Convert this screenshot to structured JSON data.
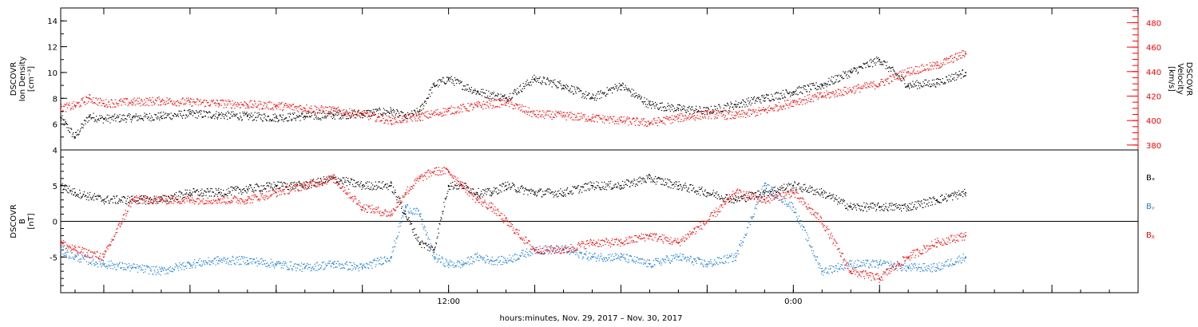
{
  "footer_label": "hours:minutes, Nov. 29, 2017 – Nov. 30, 2017",
  "colors": {
    "black": "#000000",
    "red": "#ff0000",
    "blue": "#1e7ed8"
  },
  "chart_data": [
    {
      "type": "scatter",
      "panel": "density-velocity",
      "ylabel_left": [
        "DSCOVR",
        "Ion Density",
        "[cm⁻³]"
      ],
      "ylabel_right": [
        "DSCOVR",
        "Velocity",
        "[km/s]"
      ],
      "ylim_left": [
        4,
        15
      ],
      "ylim_right": [
        376,
        492
      ],
      "yticks_left": [
        4,
        6,
        8,
        10,
        12,
        14
      ],
      "yticks_right": [
        380,
        400,
        420,
        440,
        460,
        480
      ],
      "xlim_hours": [
        -1.5,
        36
      ],
      "xtick_labels": [
        {
          "h": 12,
          "label": "12:00"
        },
        {
          "h": 24,
          "label": "0:00"
        }
      ],
      "series": [
        {
          "name": "",
          "color": "black",
          "axis": "left",
          "x": [
            -1.5,
            -1,
            -0.5,
            0,
            1,
            2,
            3,
            4,
            5,
            6,
            7,
            8,
            9,
            10,
            10.5,
            11,
            11.5,
            12,
            13,
            14,
            15,
            16,
            17,
            18,
            19,
            20,
            21,
            22,
            23,
            24,
            25,
            26,
            27,
            28,
            29,
            30
          ],
          "y": [
            6.5,
            5.0,
            6.6,
            6.4,
            6.5,
            6.6,
            6.8,
            6.7,
            6.6,
            6.5,
            6.6,
            6.7,
            6.8,
            7.0,
            6.5,
            7.0,
            9.0,
            9.5,
            8.5,
            8.0,
            9.5,
            9.0,
            8.0,
            9.0,
            7.5,
            7.2,
            7.0,
            7.5,
            8.0,
            8.5,
            9.0,
            10.0,
            11.0,
            9.0,
            9.2,
            10.0
          ],
          "y2": []
        },
        {
          "name": "",
          "color": "red",
          "axis": "right",
          "x": [
            -1.5,
            -1,
            -0.5,
            0,
            1,
            2,
            3,
            4,
            5,
            6,
            7,
            8,
            9,
            10,
            11,
            12,
            13,
            14,
            15,
            16,
            17,
            18,
            19,
            20,
            21,
            22,
            23,
            24,
            25,
            26,
            27,
            28,
            29,
            30
          ],
          "y": [
            410,
            412,
            418,
            414,
            415,
            416,
            415,
            414,
            413,
            412,
            410,
            408,
            405,
            400,
            403,
            408,
            412,
            415,
            405,
            404,
            402,
            400,
            398,
            402,
            405,
            404,
            408,
            415,
            420,
            425,
            430,
            440,
            445,
            455
          ],
          "y2": []
        }
      ]
    },
    {
      "type": "scatter",
      "panel": "magnetic-field",
      "ylabel_left": [
        "DSCOVR",
        "B",
        "[nT]"
      ],
      "ylim": [
        -10,
        10
      ],
      "yticks": [
        -5,
        0,
        5
      ],
      "zero_line": true,
      "series": [
        {
          "name": "Bₓ",
          "color": "black",
          "x": [
            -1.5,
            -1,
            0,
            1,
            2,
            3,
            4,
            5,
            6,
            7,
            8,
            9,
            10,
            10.5,
            11,
            11.5,
            12,
            12.5,
            13,
            13.5,
            14,
            15,
            16,
            17,
            18,
            19,
            20,
            21,
            22,
            23,
            24,
            25,
            26,
            27,
            28,
            29,
            30
          ],
          "y": [
            5,
            4,
            3,
            3,
            3,
            4,
            4,
            4.5,
            5,
            5,
            6,
            5,
            5,
            1,
            -3,
            -4,
            5,
            5,
            4,
            4,
            5,
            4,
            4,
            5,
            5,
            6,
            5,
            4,
            3,
            4,
            5,
            4,
            2,
            2,
            2,
            3,
            4
          ]
        },
        {
          "name": "Bᵧ",
          "color": "blue",
          "x": [
            -1.5,
            -1,
            0,
            1,
            2,
            3,
            4,
            5,
            6,
            7,
            8,
            9,
            10,
            10.5,
            11,
            11.5,
            12,
            12.5,
            13,
            13.5,
            14,
            15,
            16,
            17,
            18,
            19,
            20,
            21,
            22,
            23,
            24,
            25,
            26,
            27,
            28,
            29,
            30
          ],
          "y": [
            -4,
            -5,
            -6,
            -6.5,
            -7,
            -6,
            -5.5,
            -5.5,
            -6,
            -6.5,
            -6,
            -6.5,
            -5,
            2,
            1,
            -5,
            -6,
            -6,
            -5,
            -5.5,
            -5.5,
            -4,
            -4,
            -5,
            -5,
            -6,
            -5,
            -6,
            -5,
            5,
            2,
            -7,
            -6,
            -6,
            -6.5,
            -6.5,
            -5
          ]
        },
        {
          "name": "Bᵪ",
          "color": "red",
          "x": [
            -1.5,
            -1,
            0,
            1,
            2,
            3,
            4,
            5,
            6,
            7,
            8,
            9,
            10,
            10.5,
            11,
            11.5,
            12,
            12.5,
            13,
            13.5,
            14,
            15,
            16,
            17,
            18,
            19,
            20,
            21,
            22,
            23,
            24,
            25,
            26,
            27,
            28,
            29,
            30
          ],
          "y": [
            -3,
            -4,
            -5,
            3,
            3,
            3,
            3,
            3,
            4,
            5,
            6,
            2,
            1,
            4,
            6,
            7,
            7,
            5,
            3,
            2,
            0,
            -4,
            -4,
            -3,
            -3,
            -2,
            -3,
            0,
            4,
            3,
            4,
            0,
            -7,
            -8,
            -5,
            -3,
            -2
          ]
        }
      ]
    }
  ]
}
